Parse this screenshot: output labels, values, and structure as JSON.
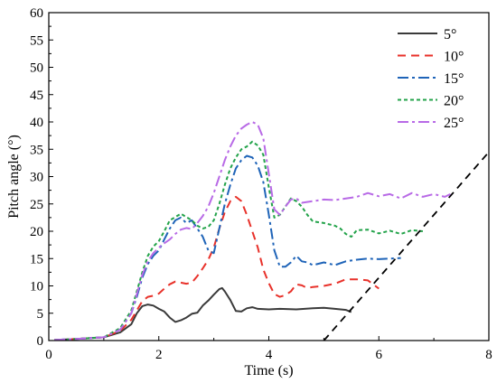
{
  "chart_data": {
    "type": "line",
    "xlabel": "Time (s)",
    "ylabel": "Pitch angle (°)",
    "xlim": [
      0,
      8
    ],
    "ylim": [
      0,
      60
    ],
    "xticks": [
      0,
      2,
      4,
      6,
      8
    ],
    "yticks": [
      0,
      5,
      10,
      15,
      20,
      25,
      30,
      35,
      40,
      45,
      50,
      55,
      60
    ],
    "grid": false,
    "legend_position": "top-right",
    "series": [
      {
        "name": "5°",
        "color": "#3a3a3a",
        "dash": "solid",
        "points": [
          [
            0.1,
            0.1
          ],
          [
            0.5,
            0.3
          ],
          [
            1.0,
            0.6
          ],
          [
            1.3,
            1.5
          ],
          [
            1.5,
            3.0
          ],
          [
            1.6,
            5.0
          ],
          [
            1.7,
            6.3
          ],
          [
            1.8,
            6.6
          ],
          [
            1.9,
            6.4
          ],
          [
            2.0,
            5.8
          ],
          [
            2.1,
            5.3
          ],
          [
            2.2,
            4.2
          ],
          [
            2.3,
            3.4
          ],
          [
            2.4,
            3.7
          ],
          [
            2.5,
            4.2
          ],
          [
            2.6,
            4.9
          ],
          [
            2.7,
            5.1
          ],
          [
            2.8,
            6.4
          ],
          [
            2.9,
            7.3
          ],
          [
            3.0,
            8.4
          ],
          [
            3.1,
            9.4
          ],
          [
            3.15,
            9.6
          ],
          [
            3.2,
            9.0
          ],
          [
            3.3,
            7.4
          ],
          [
            3.4,
            5.4
          ],
          [
            3.5,
            5.3
          ],
          [
            3.6,
            5.9
          ],
          [
            3.7,
            6.1
          ],
          [
            3.8,
            5.8
          ],
          [
            4.0,
            5.7
          ],
          [
            4.2,
            5.8
          ],
          [
            4.5,
            5.7
          ],
          [
            4.8,
            5.9
          ],
          [
            5.0,
            6.0
          ],
          [
            5.2,
            5.8
          ],
          [
            5.4,
            5.6
          ],
          [
            5.5,
            5.2
          ]
        ]
      },
      {
        "name": "10°",
        "color": "#e8312a",
        "dash": "9,6",
        "points": [
          [
            0.1,
            0.1
          ],
          [
            0.5,
            0.3
          ],
          [
            1.0,
            0.6
          ],
          [
            1.3,
            1.8
          ],
          [
            1.5,
            3.8
          ],
          [
            1.6,
            5.5
          ],
          [
            1.7,
            7.2
          ],
          [
            1.8,
            8.0
          ],
          [
            1.9,
            8.2
          ],
          [
            2.0,
            8.6
          ],
          [
            2.1,
            9.5
          ],
          [
            2.2,
            10.3
          ],
          [
            2.3,
            10.8
          ],
          [
            2.4,
            10.6
          ],
          [
            2.5,
            10.4
          ],
          [
            2.6,
            10.6
          ],
          [
            2.7,
            11.8
          ],
          [
            2.8,
            13.2
          ],
          [
            2.9,
            14.8
          ],
          [
            3.0,
            17.0
          ],
          [
            3.1,
            20.5
          ],
          [
            3.2,
            23.5
          ],
          [
            3.3,
            25.5
          ],
          [
            3.4,
            26.3
          ],
          [
            3.5,
            25.5
          ],
          [
            3.6,
            23.0
          ],
          [
            3.7,
            20.0
          ],
          [
            3.8,
            17.0
          ],
          [
            3.9,
            13.0
          ],
          [
            4.0,
            10.5
          ],
          [
            4.1,
            8.5
          ],
          [
            4.2,
            8.0
          ],
          [
            4.3,
            8.3
          ],
          [
            4.4,
            9.0
          ],
          [
            4.5,
            10.3
          ],
          [
            4.6,
            10.1
          ],
          [
            4.7,
            9.6
          ],
          [
            4.8,
            9.8
          ],
          [
            5.0,
            10.0
          ],
          [
            5.2,
            10.4
          ],
          [
            5.4,
            11.2
          ],
          [
            5.6,
            11.2
          ],
          [
            5.8,
            11.0
          ],
          [
            6.0,
            9.5
          ]
        ]
      },
      {
        "name": "15°",
        "color": "#1f64b8",
        "dash": "12,4,3,4",
        "points": [
          [
            0.1,
            0.1
          ],
          [
            0.5,
            0.3
          ],
          [
            1.0,
            0.6
          ],
          [
            1.3,
            2.0
          ],
          [
            1.5,
            5.0
          ],
          [
            1.6,
            8.0
          ],
          [
            1.7,
            11.5
          ],
          [
            1.8,
            14.0
          ],
          [
            1.9,
            15.5
          ],
          [
            2.0,
            16.5
          ],
          [
            2.1,
            18.5
          ],
          [
            2.2,
            20.5
          ],
          [
            2.3,
            22.0
          ],
          [
            2.4,
            22.5
          ],
          [
            2.5,
            21.5
          ],
          [
            2.6,
            22.0
          ],
          [
            2.7,
            20.5
          ],
          [
            2.8,
            19.0
          ],
          [
            2.9,
            16.5
          ],
          [
            3.0,
            16.0
          ],
          [
            3.1,
            20.5
          ],
          [
            3.2,
            25.0
          ],
          [
            3.3,
            28.5
          ],
          [
            3.4,
            31.5
          ],
          [
            3.5,
            33.0
          ],
          [
            3.6,
            33.8
          ],
          [
            3.7,
            33.5
          ],
          [
            3.8,
            32.0
          ],
          [
            3.9,
            29.0
          ],
          [
            4.0,
            23.0
          ],
          [
            4.1,
            16.5
          ],
          [
            4.2,
            13.5
          ],
          [
            4.3,
            13.5
          ],
          [
            4.4,
            14.3
          ],
          [
            4.5,
            15.5
          ],
          [
            4.6,
            14.5
          ],
          [
            4.7,
            14.3
          ],
          [
            4.8,
            13.8
          ],
          [
            5.0,
            14.3
          ],
          [
            5.2,
            13.8
          ],
          [
            5.4,
            14.5
          ],
          [
            5.6,
            14.8
          ],
          [
            5.8,
            15.0
          ],
          [
            6.0,
            14.9
          ],
          [
            6.2,
            15.0
          ],
          [
            6.4,
            15.1
          ]
        ]
      },
      {
        "name": "20°",
        "color": "#23a34a",
        "dash": "4,3",
        "points": [
          [
            0.1,
            0.1
          ],
          [
            0.5,
            0.3
          ],
          [
            1.0,
            0.6
          ],
          [
            1.3,
            2.3
          ],
          [
            1.5,
            5.5
          ],
          [
            1.6,
            9.0
          ],
          [
            1.7,
            12.5
          ],
          [
            1.8,
            15.5
          ],
          [
            1.9,
            17.2
          ],
          [
            2.0,
            18.2
          ],
          [
            2.1,
            20.0
          ],
          [
            2.2,
            22.0
          ],
          [
            2.3,
            22.6
          ],
          [
            2.4,
            23.2
          ],
          [
            2.5,
            22.6
          ],
          [
            2.6,
            22.0
          ],
          [
            2.7,
            21.0
          ],
          [
            2.8,
            20.5
          ],
          [
            2.9,
            20.8
          ],
          [
            3.0,
            22.0
          ],
          [
            3.1,
            25.0
          ],
          [
            3.2,
            28.5
          ],
          [
            3.3,
            31.5
          ],
          [
            3.4,
            33.5
          ],
          [
            3.5,
            35.0
          ],
          [
            3.6,
            35.5
          ],
          [
            3.7,
            36.4
          ],
          [
            3.8,
            35.7
          ],
          [
            3.9,
            34.0
          ],
          [
            4.0,
            28.0
          ],
          [
            4.1,
            22.5
          ],
          [
            4.2,
            23.0
          ],
          [
            4.3,
            24.5
          ],
          [
            4.4,
            26.0
          ],
          [
            4.5,
            25.5
          ],
          [
            4.6,
            24.5
          ],
          [
            4.7,
            23.0
          ],
          [
            4.8,
            21.8
          ],
          [
            5.0,
            21.5
          ],
          [
            5.2,
            21.0
          ],
          [
            5.3,
            20.5
          ],
          [
            5.4,
            19.5
          ],
          [
            5.5,
            19.0
          ],
          [
            5.6,
            20.2
          ],
          [
            5.8,
            20.3
          ],
          [
            6.0,
            19.6
          ],
          [
            6.2,
            20.1
          ],
          [
            6.4,
            19.5
          ],
          [
            6.6,
            20.2
          ],
          [
            6.8,
            20.0
          ]
        ]
      },
      {
        "name": "25°",
        "color": "#b86ae6",
        "dash": "12,4,3,4",
        "points": [
          [
            0.1,
            0.1
          ],
          [
            0.5,
            0.3
          ],
          [
            1.0,
            0.6
          ],
          [
            1.3,
            2.0
          ],
          [
            1.5,
            5.0
          ],
          [
            1.6,
            8.5
          ],
          [
            1.7,
            12.0
          ],
          [
            1.8,
            14.5
          ],
          [
            1.9,
            16.0
          ],
          [
            2.0,
            17.0
          ],
          [
            2.1,
            17.8
          ],
          [
            2.2,
            18.5
          ],
          [
            2.3,
            19.5
          ],
          [
            2.4,
            20.3
          ],
          [
            2.5,
            20.6
          ],
          [
            2.6,
            20.4
          ],
          [
            2.7,
            21.5
          ],
          [
            2.8,
            22.8
          ],
          [
            2.9,
            24.5
          ],
          [
            3.0,
            27.0
          ],
          [
            3.1,
            30.0
          ],
          [
            3.2,
            33.0
          ],
          [
            3.3,
            35.5
          ],
          [
            3.4,
            37.5
          ],
          [
            3.5,
            38.8
          ],
          [
            3.6,
            39.5
          ],
          [
            3.7,
            40.0
          ],
          [
            3.8,
            39.5
          ],
          [
            3.9,
            37.0
          ],
          [
            4.0,
            30.5
          ],
          [
            4.1,
            24.0
          ],
          [
            4.2,
            23.0
          ],
          [
            4.3,
            24.5
          ],
          [
            4.4,
            25.8
          ],
          [
            4.5,
            26.0
          ],
          [
            4.6,
            25.2
          ],
          [
            4.8,
            25.5
          ],
          [
            5.0,
            25.8
          ],
          [
            5.2,
            25.7
          ],
          [
            5.4,
            26.0
          ],
          [
            5.6,
            26.3
          ],
          [
            5.8,
            27.0
          ],
          [
            6.0,
            26.4
          ],
          [
            6.2,
            26.8
          ],
          [
            6.4,
            26.0
          ],
          [
            6.6,
            27.0
          ],
          [
            6.8,
            26.3
          ],
          [
            7.0,
            26.8
          ],
          [
            7.2,
            26.3
          ],
          [
            7.3,
            26.8
          ]
        ]
      }
    ],
    "reference_line": {
      "color": "#000000",
      "dash": "8,6",
      "points": [
        [
          5.0,
          0
        ],
        [
          8.0,
          34.5
        ]
      ]
    }
  }
}
